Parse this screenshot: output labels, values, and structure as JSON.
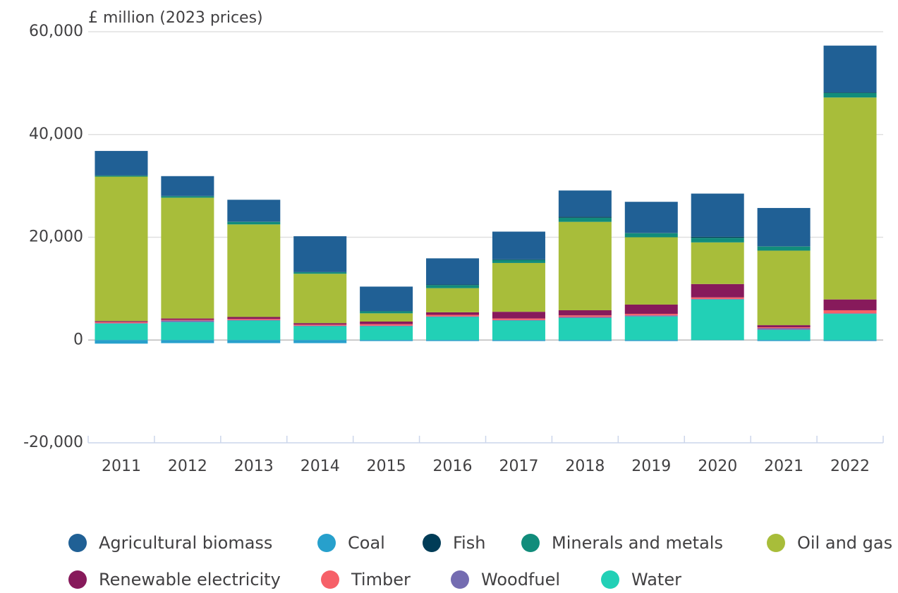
{
  "chart_data": {
    "type": "stacked-bar",
    "y_axis_label": "£ million (2023 prices)",
    "categories": [
      "2011",
      "2012",
      "2013",
      "2014",
      "2015",
      "2016",
      "2017",
      "2018",
      "2019",
      "2020",
      "2021",
      "2022"
    ],
    "ylim": [
      -20000,
      60000
    ],
    "yticks": [
      {
        "value": -20000,
        "label": "-20,000"
      },
      0,
      {
        "value": 20000,
        "label": "20,000"
      },
      {
        "value": 40000,
        "label": "40,000"
      },
      {
        "value": 60000,
        "label": "60,000"
      }
    ],
    "grid": true,
    "legend": "bottom",
    "series": [
      {
        "name": "Agricultural biomass",
        "color": "#206095",
        "values": [
          4750,
          3850,
          4250,
          6950,
          4750,
          5100,
          5400,
          5100,
          6050,
          8400,
          7450,
          9100
        ]
      },
      {
        "name": "Coal",
        "color": "#27a0cc",
        "values": [
          -700,
          -600,
          -600,
          -600,
          -200,
          -200,
          -200,
          -200,
          -200,
          -50,
          -200,
          -200
        ]
      },
      {
        "name": "Fish",
        "color": "#003c57",
        "values": [
          50,
          50,
          50,
          50,
          50,
          100,
          100,
          200,
          50,
          200,
          50,
          100
        ]
      },
      {
        "name": "Minerals and metals",
        "color": "#118c7b",
        "values": [
          200,
          300,
          500,
          300,
          400,
          600,
          600,
          800,
          800,
          900,
          800,
          900
        ]
      },
      {
        "name": "Oil and gas",
        "color": "#a8bd3a",
        "values": [
          28100,
          23500,
          18000,
          9600,
          1600,
          4700,
          9500,
          17200,
          13100,
          8100,
          14500,
          39300
        ]
      },
      {
        "name": "Renewable electricity",
        "color": "#871a5b",
        "values": [
          200,
          250,
          400,
          300,
          500,
          500,
          1300,
          1000,
          1800,
          2600,
          400,
          2100
        ]
      },
      {
        "name": "Timber",
        "color": "#f66068",
        "values": [
          200,
          150,
          200,
          200,
          300,
          300,
          300,
          300,
          300,
          300,
          200,
          600
        ]
      },
      {
        "name": "Woodfuel",
        "color": "#746cb1",
        "values": [
          100,
          300,
          100,
          100,
          100,
          100,
          100,
          200,
          200,
          100,
          300,
          100
        ]
      },
      {
        "name": "Water",
        "color": "#22d0b6",
        "values": [
          3200,
          3500,
          3800,
          2700,
          2700,
          4500,
          3800,
          4300,
          4600,
          7900,
          2000,
          5100
        ]
      }
    ]
  }
}
